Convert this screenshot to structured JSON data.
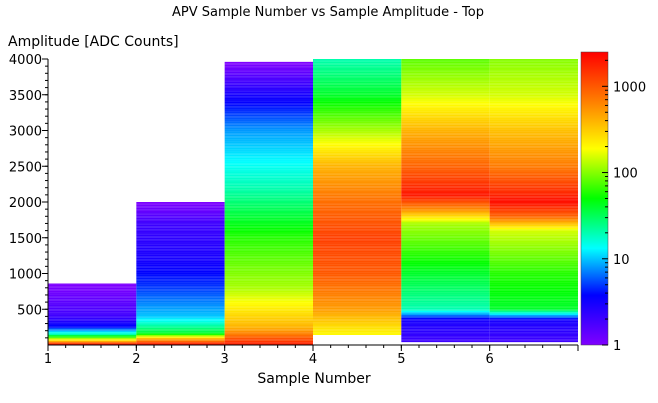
{
  "chart_data": {
    "type": "heatmap",
    "title": "APV Sample Number vs Sample Amplitude - Top",
    "xlabel": "Sample Number",
    "ylabel": "Amplitude [ADC Counts]",
    "x_ticks": [
      "1",
      "2",
      "3",
      "4",
      "5",
      "6"
    ],
    "y_ticks": [
      "500",
      "1000",
      "1500",
      "2000",
      "2500",
      "3000",
      "3500",
      "4000"
    ],
    "x_range": [
      1,
      7
    ],
    "y_range": [
      0,
      4000
    ],
    "colorbar": {
      "scale": "log",
      "range": [
        1,
        2500
      ],
      "ticks": [
        "1",
        "10",
        "100",
        "1000"
      ]
    },
    "bins": [
      {
        "sample": 1,
        "max_amplitude": 850,
        "profile": [
          [
            0,
            3000
          ],
          [
            60,
            300
          ],
          [
            150,
            20
          ],
          [
            250,
            4
          ],
          [
            400,
            2
          ],
          [
            850,
            1
          ]
        ]
      },
      {
        "sample": 2,
        "max_amplitude": 2000,
        "profile": [
          [
            0,
            2500
          ],
          [
            100,
            300
          ],
          [
            160,
            40
          ],
          [
            400,
            10
          ],
          [
            800,
            5
          ],
          [
            1200,
            3
          ],
          [
            1700,
            2
          ],
          [
            2000,
            1
          ]
        ]
      },
      {
        "sample": 3,
        "max_amplitude": 3950,
        "profile": [
          [
            0,
            2000
          ],
          [
            150,
            700
          ],
          [
            250,
            400
          ],
          [
            800,
            120
          ],
          [
            1500,
            60
          ],
          [
            2200,
            20
          ],
          [
            3000,
            8
          ],
          [
            3500,
            3
          ],
          [
            3950,
            1
          ]
        ]
      },
      {
        "sample": 4,
        "max_amplitude": 4000,
        "profile": [
          [
            150,
            200
          ],
          [
            500,
            500
          ],
          [
            1000,
            1000
          ],
          [
            1500,
            1300
          ],
          [
            2000,
            800
          ],
          [
            2500,
            400
          ],
          [
            3000,
            120
          ],
          [
            3500,
            40
          ],
          [
            4000,
            20
          ]
        ]
      },
      {
        "sample": 5,
        "max_amplitude": 4000,
        "profile": [
          [
            40,
            2
          ],
          [
            350,
            3
          ],
          [
            500,
            20
          ],
          [
            1000,
            40
          ],
          [
            1700,
            120
          ],
          [
            1900,
            600
          ],
          [
            2100,
            2000
          ],
          [
            2500,
            900
          ],
          [
            3000,
            400
          ],
          [
            3500,
            150
          ],
          [
            4000,
            80
          ]
        ]
      },
      {
        "sample": 6,
        "max_amplitude": 4000,
        "profile": [
          [
            50,
            2
          ],
          [
            350,
            3
          ],
          [
            500,
            40
          ],
          [
            1000,
            60
          ],
          [
            1600,
            150
          ],
          [
            1800,
            900
          ],
          [
            2000,
            2200
          ],
          [
            2500,
            700
          ],
          [
            3000,
            350
          ],
          [
            3500,
            150
          ],
          [
            4000,
            100
          ]
        ]
      }
    ]
  }
}
